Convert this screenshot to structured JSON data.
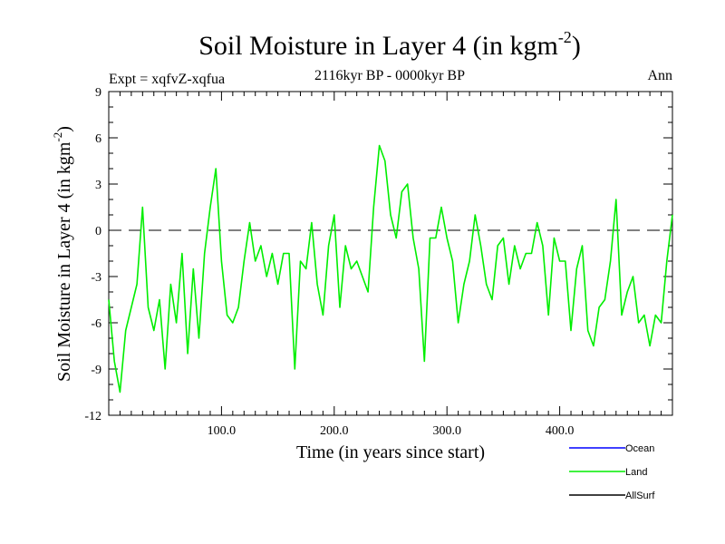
{
  "chart_data": {
    "type": "line",
    "title": "Soil Moisture in Layer 4 (in kgm",
    "title_sup": "-2",
    "title_close": ")",
    "subtitle": "2116kyr BP - 0000kyr BP",
    "left_label": "Expt = xqfvZ-xqfua",
    "right_label": "Ann",
    "xlabel": "Time (in years since start)",
    "ylabel": "Soil Moisture in Layer 4 (in kgm",
    "ylabel_sup": "-2",
    "ylabel_close": ")",
    "xlim": [
      0,
      500
    ],
    "ylim": [
      -12,
      9
    ],
    "x_ticks": [
      100,
      200,
      300,
      400
    ],
    "x_tick_labels": [
      "100.0",
      "200.0",
      "300.0",
      "400.0"
    ],
    "y_ticks": [
      -12,
      -9,
      -6,
      -3,
      0,
      3,
      6,
      9
    ],
    "y_tick_labels": [
      "-12",
      "-9",
      "-6",
      "-3",
      "0",
      "3",
      "6",
      "9"
    ],
    "zero_line": 0,
    "legend": [
      {
        "name": "Ocean",
        "color": "#0000ff"
      },
      {
        "name": "Land",
        "color": "#00ee00"
      },
      {
        "name": "AllSurf",
        "color": "#000000"
      }
    ],
    "series": [
      {
        "name": "Land",
        "color": "#00ee00",
        "x": [
          0,
          5,
          10,
          15,
          20,
          25,
          30,
          35,
          40,
          45,
          50,
          55,
          60,
          65,
          70,
          75,
          80,
          85,
          90,
          95,
          100,
          105,
          110,
          115,
          120,
          125,
          130,
          135,
          140,
          145,
          150,
          155,
          160,
          165,
          170,
          175,
          180,
          185,
          190,
          195,
          200,
          205,
          210,
          215,
          220,
          225,
          230,
          235,
          240,
          245,
          250,
          255,
          260,
          265,
          270,
          275,
          280,
          285,
          290,
          295,
          300,
          305,
          310,
          315,
          320,
          325,
          330,
          335,
          340,
          345,
          350,
          355,
          360,
          365,
          370,
          375,
          380,
          385,
          390,
          395,
          400,
          405,
          410,
          415,
          420,
          425,
          430,
          435,
          440,
          445,
          450,
          455,
          460,
          465,
          470,
          475,
          480,
          485,
          490,
          495,
          500
        ],
        "y": [
          -4.5,
          -8.5,
          -10.5,
          -6.5,
          -5,
          -3.5,
          1.5,
          -5,
          -6.5,
          -4.5,
          -9,
          -3.5,
          -6,
          -1.5,
          -8,
          -2.5,
          -7,
          -1.5,
          1.5,
          4,
          -2,
          -5.5,
          -6,
          -5,
          -2,
          0.5,
          -2,
          -1,
          -3,
          -1.5,
          -3.5,
          -1.5,
          -1.5,
          -9,
          -2,
          -2.5,
          0.5,
          -3.5,
          -5.5,
          -1,
          1,
          -5,
          -1,
          -2.5,
          -2,
          -3,
          -4,
          1.5,
          5.5,
          4.5,
          1,
          -0.5,
          2.5,
          3,
          -0.5,
          -2.5,
          -8.5,
          -0.5,
          -0.5,
          1.5,
          -0.5,
          -2,
          -6,
          -3.5,
          -2,
          1,
          -1,
          -3.5,
          -4.5,
          -1,
          -0.5,
          -3.5,
          -1,
          -2.5,
          -1.5,
          -1.5,
          0.5,
          -1,
          -5.5,
          -0.5,
          -2,
          -2,
          -6.5,
          -2.5,
          -1,
          -6.5,
          -7.5,
          -5,
          -4.5,
          -2,
          2,
          -5.5,
          -4,
          -3,
          -6,
          -5.5,
          -7.5,
          -5.5,
          -6,
          -2,
          1
        ]
      }
    ]
  }
}
